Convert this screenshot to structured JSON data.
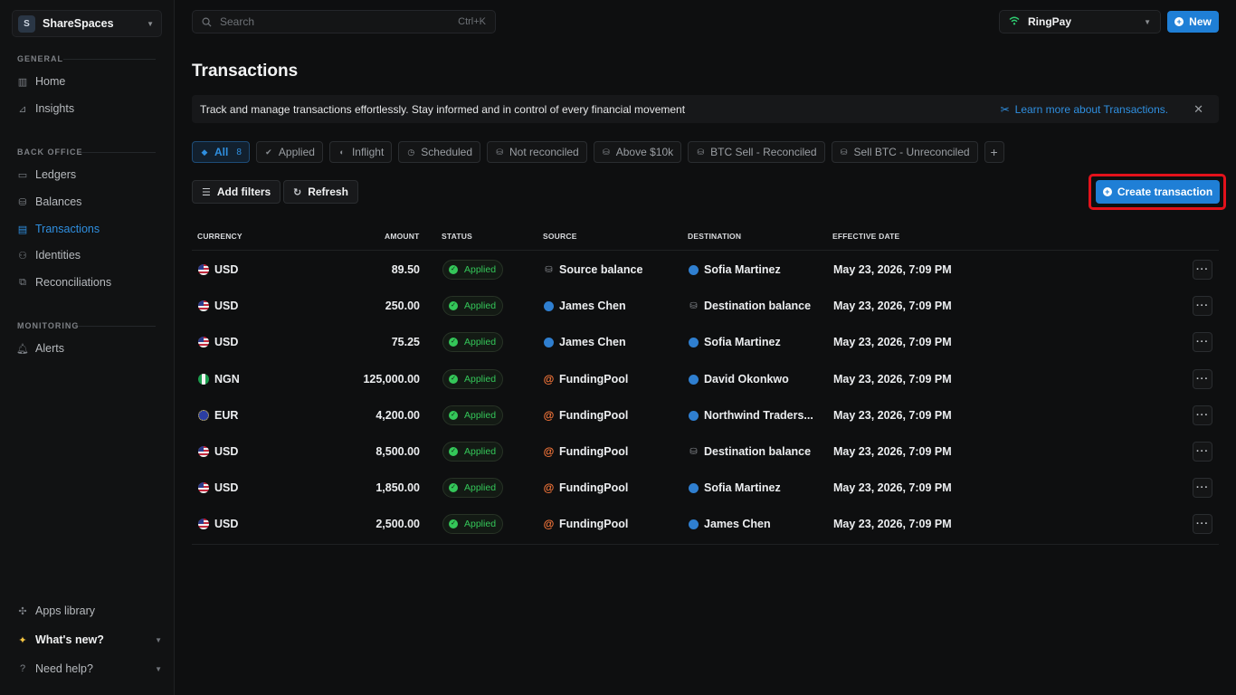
{
  "sidebar": {
    "workspace": {
      "initial": "S",
      "name": "ShareSpaces"
    },
    "sections": [
      {
        "title": "GENERAL",
        "items": [
          {
            "label": "Home",
            "icon": "chart-bars-icon"
          },
          {
            "label": "Insights",
            "icon": "line-chart-icon"
          }
        ]
      },
      {
        "title": "BACK OFFICE",
        "items": [
          {
            "label": "Ledgers",
            "icon": "folder-icon"
          },
          {
            "label": "Balances",
            "icon": "coins-icon"
          },
          {
            "label": "Transactions",
            "icon": "transactions-icon",
            "active": true
          },
          {
            "label": "Identities",
            "icon": "users-icon"
          },
          {
            "label": "Reconciliations",
            "icon": "reconcile-icon"
          }
        ]
      },
      {
        "title": "MONITORING",
        "items": [
          {
            "label": "Alerts",
            "icon": "bell-icon"
          }
        ]
      }
    ],
    "bottom": [
      {
        "label": "Apps library"
      },
      {
        "label": "What's new?"
      },
      {
        "label": "Need help?"
      }
    ]
  },
  "topbar": {
    "search_placeholder": "Search",
    "search_shortcut": "Ctrl+K",
    "org_name": "RingPay",
    "new_label": "New"
  },
  "page": {
    "title": "Transactions",
    "banner_text": "Track and manage transactions effortlessly. Stay informed and in control of every financial movement",
    "learn_more": "Learn more about Transactions.",
    "tabs": [
      {
        "label": "All",
        "count": "8"
      },
      {
        "label": "Applied"
      },
      {
        "label": "Inflight"
      },
      {
        "label": "Scheduled"
      },
      {
        "label": "Not reconciled"
      },
      {
        "label": "Above $10k"
      },
      {
        "label": "BTC Sell - Reconciled"
      },
      {
        "label": "Sell BTC - Unreconciled"
      }
    ],
    "add_filters": "Add filters",
    "refresh": "Refresh",
    "create_transaction": "Create transaction"
  },
  "table": {
    "headers": {
      "currency": "CURRENCY",
      "amount": "AMOUNT",
      "status": "STATUS",
      "source": "SOURCE",
      "destination": "DESTINATION",
      "effective_date": "EFFECTIVE DATE"
    },
    "rows": [
      {
        "flag": "us",
        "currency": "USD",
        "amount": "89.50",
        "status": "Applied",
        "source": "Source balance",
        "source_type": "balance",
        "destination": "Sofia Martinez",
        "dest_type": "person",
        "date": "May 23, 2026, 7:09 PM"
      },
      {
        "flag": "us",
        "currency": "USD",
        "amount": "250.00",
        "status": "Applied",
        "source": "James Chen",
        "source_type": "person",
        "destination": "Destination balance",
        "dest_type": "balance",
        "date": "May 23, 2026, 7:09 PM"
      },
      {
        "flag": "us",
        "currency": "USD",
        "amount": "75.25",
        "status": "Applied",
        "source": "James Chen",
        "source_type": "person",
        "destination": "Sofia Martinez",
        "dest_type": "person",
        "date": "May 23, 2026, 7:09 PM"
      },
      {
        "flag": "ng",
        "currency": "NGN",
        "amount": "125,000.00",
        "status": "Applied",
        "source": "FundingPool",
        "source_type": "at",
        "destination": "David Okonkwo",
        "dest_type": "person",
        "date": "May 23, 2026, 7:09 PM"
      },
      {
        "flag": "eu",
        "currency": "EUR",
        "amount": "4,200.00",
        "status": "Applied",
        "source": "FundingPool",
        "source_type": "at",
        "destination": "Northwind Traders...",
        "dest_type": "person",
        "date": "May 23, 2026, 7:09 PM"
      },
      {
        "flag": "us",
        "currency": "USD",
        "amount": "8,500.00",
        "status": "Applied",
        "source": "FundingPool",
        "source_type": "at",
        "destination": "Destination balance",
        "dest_type": "balance",
        "date": "May 23, 2026, 7:09 PM"
      },
      {
        "flag": "us",
        "currency": "USD",
        "amount": "1,850.00",
        "status": "Applied",
        "source": "FundingPool",
        "source_type": "at",
        "destination": "Sofia Martinez",
        "dest_type": "person",
        "date": "May 23, 2026, 7:09 PM"
      },
      {
        "flag": "us",
        "currency": "USD",
        "amount": "2,500.00",
        "status": "Applied",
        "source": "FundingPool",
        "source_type": "at",
        "destination": "James Chen",
        "dest_type": "person",
        "date": "May 23, 2026, 7:09 PM"
      }
    ]
  },
  "colors": {
    "accent": "#1f7fd6",
    "status_applied": "#34c759",
    "highlight": "#e3121b"
  }
}
